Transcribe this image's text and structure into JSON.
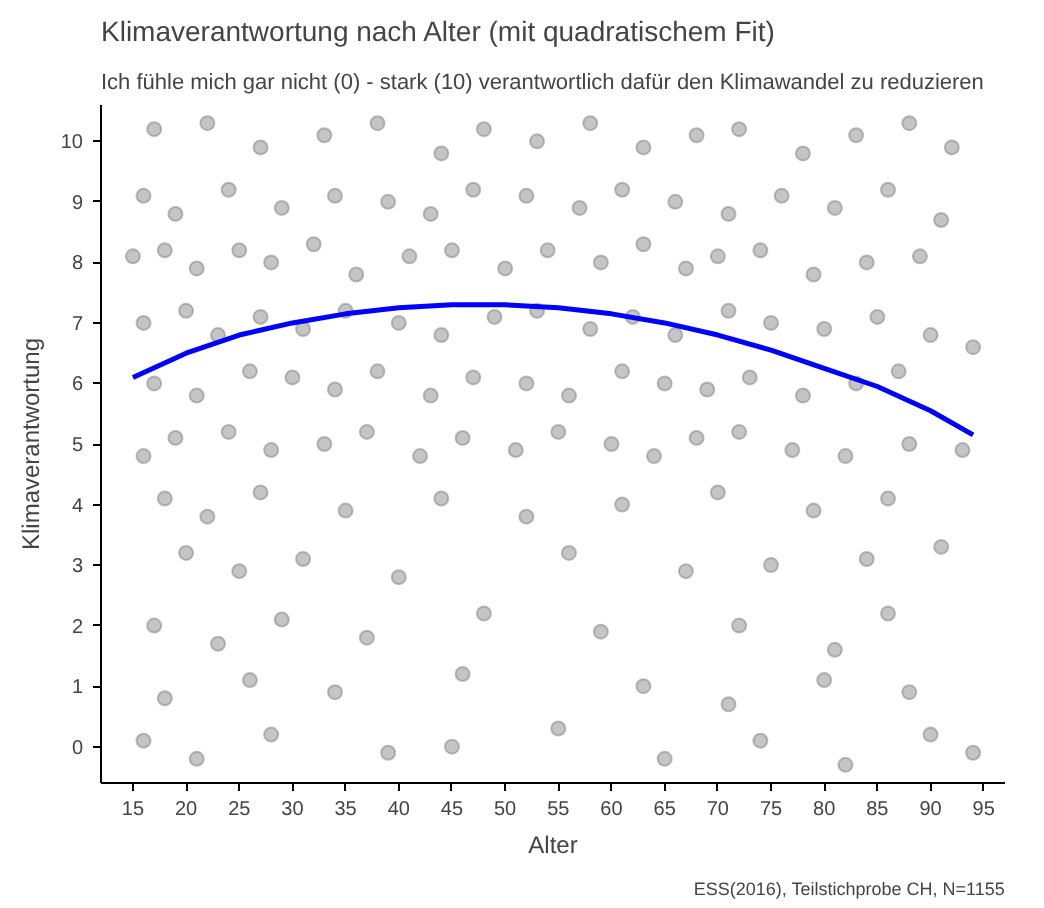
{
  "chart_data": {
    "type": "scatter",
    "title": "Klimaverantwortung nach Alter (mit quadratischem Fit)",
    "subtitle": "Ich fühle mich gar nicht (0) - stark (10) verantwortlich dafür den Klimawandel zu reduzieren",
    "xlabel": "Alter",
    "ylabel": "Klimaverantwortung",
    "annotations": [
      "ESS(2016), Teilstichprobe CH, N=1155"
    ],
    "xlim": [
      12,
      97
    ],
    "ylim": [
      -0.6,
      10.6
    ],
    "xticks": [
      15,
      20,
      25,
      30,
      35,
      40,
      45,
      50,
      55,
      60,
      65,
      70,
      75,
      80,
      85,
      90,
      95
    ],
    "yticks": [
      0,
      1,
      2,
      3,
      4,
      5,
      6,
      7,
      8,
      9,
      10
    ],
    "grid": false,
    "marker": "circle",
    "series": [
      {
        "color": "#7f7f7f",
        "x": [
          17,
          22,
          27,
          33,
          38,
          44,
          48,
          53,
          58,
          63,
          68,
          72,
          78,
          83,
          88,
          92,
          16,
          19,
          24,
          29,
          34,
          39,
          43,
          47,
          52,
          57,
          61,
          66,
          71,
          76,
          81,
          86,
          91,
          15,
          18,
          21,
          25,
          28,
          32,
          36,
          41,
          45,
          50,
          54,
          59,
          63,
          67,
          70,
          74,
          79,
          84,
          89,
          16,
          20,
          23,
          27,
          31,
          35,
          40,
          44,
          49,
          53,
          58,
          62,
          66,
          71,
          75,
          80,
          85,
          90,
          94,
          17,
          21,
          26,
          30,
          34,
          38,
          43,
          47,
          52,
          56,
          61,
          65,
          69,
          73,
          78,
          83,
          87,
          16,
          19,
          24,
          28,
          33,
          37,
          42,
          46,
          51,
          55,
          60,
          64,
          68,
          72,
          77,
          82,
          88,
          93,
          18,
          22,
          27,
          35,
          44,
          52,
          61,
          70,
          79,
          86,
          20,
          25,
          31,
          40,
          56,
          67,
          75,
          84,
          91,
          17,
          23,
          29,
          37,
          48,
          59,
          72,
          81,
          86,
          18,
          26,
          34,
          46,
          63,
          71,
          80,
          88,
          16,
          21,
          28,
          39,
          45,
          55,
          65,
          74,
          82,
          90,
          94
        ],
        "values": [
          10.2,
          10.3,
          9.9,
          10.1,
          10.3,
          9.8,
          10.2,
          10.0,
          10.3,
          9.9,
          10.1,
          10.2,
          9.8,
          10.1,
          10.3,
          9.9,
          9.1,
          8.8,
          9.2,
          8.9,
          9.1,
          9.0,
          8.8,
          9.2,
          9.1,
          8.9,
          9.2,
          9.0,
          8.8,
          9.1,
          8.9,
          9.2,
          8.7,
          8.1,
          8.2,
          7.9,
          8.2,
          8.0,
          8.3,
          7.8,
          8.1,
          8.2,
          7.9,
          8.2,
          8.0,
          8.3,
          7.9,
          8.1,
          8.2,
          7.8,
          8.0,
          8.1,
          7.0,
          7.2,
          6.8,
          7.1,
          6.9,
          7.2,
          7.0,
          6.8,
          7.1,
          7.2,
          6.9,
          7.1,
          6.8,
          7.2,
          7.0,
          6.9,
          7.1,
          6.8,
          6.6,
          6.0,
          5.8,
          6.2,
          6.1,
          5.9,
          6.2,
          5.8,
          6.1,
          6.0,
          5.8,
          6.2,
          6.0,
          5.9,
          6.1,
          5.8,
          6.0,
          6.2,
          4.8,
          5.1,
          5.2,
          4.9,
          5.0,
          5.2,
          4.8,
          5.1,
          4.9,
          5.2,
          5.0,
          4.8,
          5.1,
          5.2,
          4.9,
          4.8,
          5.0,
          4.9,
          4.1,
          3.8,
          4.2,
          3.9,
          4.1,
          3.8,
          4.0,
          4.2,
          3.9,
          4.1,
          3.2,
          2.9,
          3.1,
          2.8,
          3.2,
          2.9,
          3.0,
          3.1,
          3.3,
          2.0,
          1.7,
          2.1,
          1.8,
          2.2,
          1.9,
          2.0,
          1.6,
          2.2,
          0.8,
          1.1,
          0.9,
          1.2,
          1.0,
          0.7,
          1.1,
          0.9,
          0.1,
          -0.2,
          0.2,
          -0.1,
          0.0,
          0.3,
          -0.2,
          0.1,
          -0.3,
          0.2,
          -0.1
        ]
      },
      {
        "type": "line",
        "color": "#0000ff",
        "marker": "none",
        "line_style": "solid",
        "x": [
          15,
          20,
          25,
          30,
          35,
          40,
          45,
          50,
          55,
          60,
          65,
          70,
          75,
          80,
          85,
          90,
          94
        ],
        "values": [
          6.1,
          6.5,
          6.8,
          7.0,
          7.15,
          7.25,
          7.3,
          7.3,
          7.25,
          7.15,
          7.0,
          6.8,
          6.55,
          6.25,
          5.95,
          5.55,
          5.15
        ]
      }
    ]
  }
}
